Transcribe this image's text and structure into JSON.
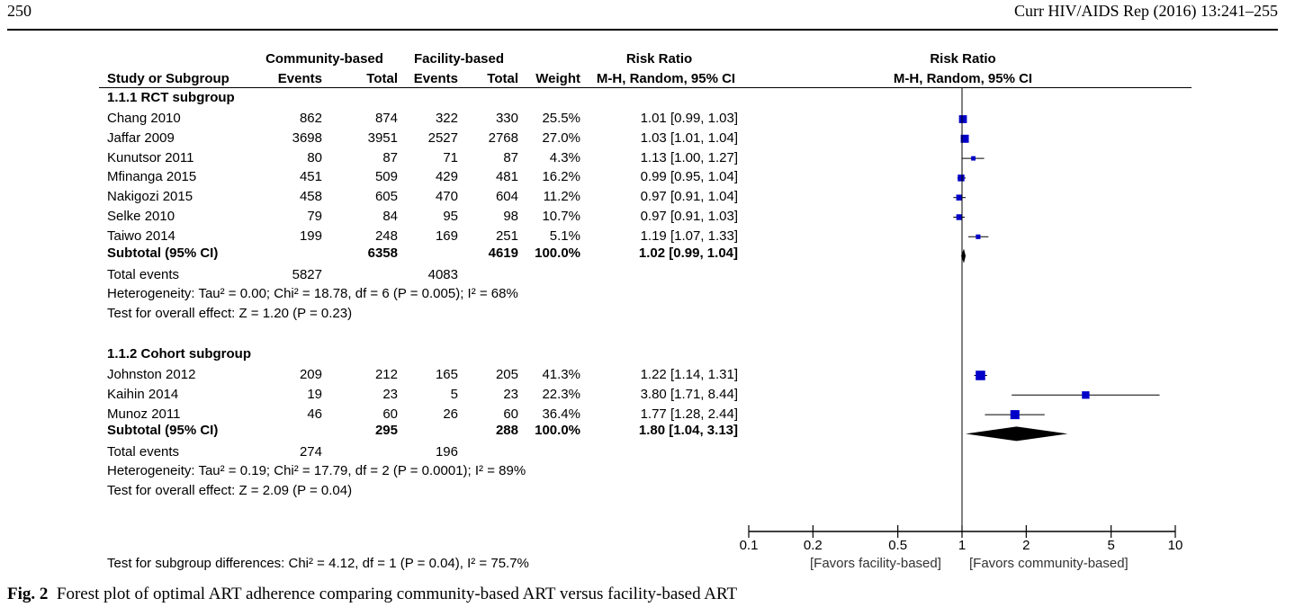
{
  "page_header": {
    "page_number": "250",
    "journal": "Curr HIV/AIDS Rep (2016) 13:241–255"
  },
  "table_headers": {
    "study": "Study or Subgroup",
    "community": "Community-based",
    "facility": "Facility-based",
    "events": "Events",
    "total": "Total",
    "weight": "Weight",
    "risk_ratio": "Risk Ratio",
    "method": "M-H, Random, 95% CI",
    "plot_title": "Risk Ratio",
    "plot_method": "M-H, Random, 95% CI"
  },
  "chart_data": {
    "type": "forest",
    "x_scale": "log",
    "xlim": [
      0.1,
      10
    ],
    "x_ticks": [
      "0.1",
      "0.2",
      "0.5",
      "1",
      "2",
      "5",
      "10"
    ],
    "x_tick_values": [
      0.1,
      0.2,
      0.5,
      1,
      2,
      5,
      10
    ],
    "null_value": 1,
    "favors_left": "[Favors facility-based]",
    "favors_right": "[Favors community-based]",
    "subgroups": [
      {
        "title": "1.1.1 RCT subgroup",
        "studies": [
          {
            "name": "Chang 2010",
            "ce": "862",
            "ct": "874",
            "fe": "322",
            "ft": "330",
            "weight": "25.5%",
            "rr_text": "1.01 [0.99, 1.03]",
            "rr": 1.01,
            "lo": 0.99,
            "hi": 1.03,
            "w": 25.5
          },
          {
            "name": "Jaffar 2009",
            "ce": "3698",
            "ct": "3951",
            "fe": "2527",
            "ft": "2768",
            "weight": "27.0%",
            "rr_text": "1.03 [1.01, 1.04]",
            "rr": 1.03,
            "lo": 1.01,
            "hi": 1.04,
            "w": 27.0
          },
          {
            "name": "Kunutsor 2011",
            "ce": "80",
            "ct": "87",
            "fe": "71",
            "ft": "87",
            "weight": "4.3%",
            "rr_text": "1.13 [1.00, 1.27]",
            "rr": 1.13,
            "lo": 1.0,
            "hi": 1.27,
            "w": 4.3
          },
          {
            "name": "Mfinanga 2015",
            "ce": "451",
            "ct": "509",
            "fe": "429",
            "ft": "481",
            "weight": "16.2%",
            "rr_text": "0.99 [0.95, 1.04]",
            "rr": 0.99,
            "lo": 0.95,
            "hi": 1.04,
            "w": 16.2
          },
          {
            "name": "Nakigozi 2015",
            "ce": "458",
            "ct": "605",
            "fe": "470",
            "ft": "604",
            "weight": "11.2%",
            "rr_text": "0.97 [0.91, 1.04]",
            "rr": 0.97,
            "lo": 0.91,
            "hi": 1.04,
            "w": 11.2
          },
          {
            "name": "Selke 2010",
            "ce": "79",
            "ct": "84",
            "fe": "95",
            "ft": "98",
            "weight": "10.7%",
            "rr_text": "0.97 [0.91, 1.03]",
            "rr": 0.97,
            "lo": 0.91,
            "hi": 1.03,
            "w": 10.7
          },
          {
            "name": "Taiwo 2014",
            "ce": "199",
            "ct": "248",
            "fe": "169",
            "ft": "251",
            "weight": "5.1%",
            "rr_text": "1.19 [1.07, 1.33]",
            "rr": 1.19,
            "lo": 1.07,
            "hi": 1.33,
            "w": 5.1
          }
        ],
        "subtotal": {
          "label": "Subtotal (95% CI)",
          "ct": "6358",
          "ft": "4619",
          "weight": "100.0%",
          "rr_text": "1.02 [0.99, 1.04]",
          "rr": 1.02,
          "lo": 0.99,
          "hi": 1.04
        },
        "total_events": {
          "label": "Total events",
          "ce": "5827",
          "fe": "4083"
        },
        "heterogeneity": "Heterogeneity: Tau² = 0.00; Chi² = 18.78, df = 6 (P = 0.005); I² = 68%",
        "overall_effect": "Test for overall effect: Z = 1.20 (P = 0.23)"
      },
      {
        "title": "1.1.2 Cohort subgroup",
        "studies": [
          {
            "name": "Johnston 2012",
            "ce": "209",
            "ct": "212",
            "fe": "165",
            "ft": "205",
            "weight": "41.3%",
            "rr_text": "1.22 [1.14, 1.31]",
            "rr": 1.22,
            "lo": 1.14,
            "hi": 1.31,
            "w": 41.3
          },
          {
            "name": "Kaihin 2014",
            "ce": "19",
            "ct": "23",
            "fe": "5",
            "ft": "23",
            "weight": "22.3%",
            "rr_text": "3.80 [1.71, 8.44]",
            "rr": 3.8,
            "lo": 1.71,
            "hi": 8.44,
            "w": 22.3
          },
          {
            "name": "Munoz 2011",
            "ce": "46",
            "ct": "60",
            "fe": "26",
            "ft": "60",
            "weight": "36.4%",
            "rr_text": "1.77 [1.28, 2.44]",
            "rr": 1.77,
            "lo": 1.28,
            "hi": 2.44,
            "w": 36.4
          }
        ],
        "subtotal": {
          "label": "Subtotal (95% CI)",
          "ct": "295",
          "ft": "288",
          "weight": "100.0%",
          "rr_text": "1.80 [1.04, 3.13]",
          "rr": 1.8,
          "lo": 1.04,
          "hi": 3.13
        },
        "total_events": {
          "label": "Total events",
          "ce": "274",
          "fe": "196"
        },
        "heterogeneity": "Heterogeneity: Tau² = 0.19; Chi² = 17.79, df = 2 (P = 0.0001); I² = 89%",
        "overall_effect": "Test for overall effect: Z = 2.09 (P = 0.04)"
      }
    ],
    "subgroup_differences": "Test for subgroup differences: Chi² = 4.12, df = 1 (P = 0.04), I² = 75.7%",
    "marker_color": "#0000c8"
  },
  "caption": {
    "label": "Fig. 2",
    "text": "Forest plot of optimal ART adherence comparing community-based ART versus facility-based ART"
  }
}
